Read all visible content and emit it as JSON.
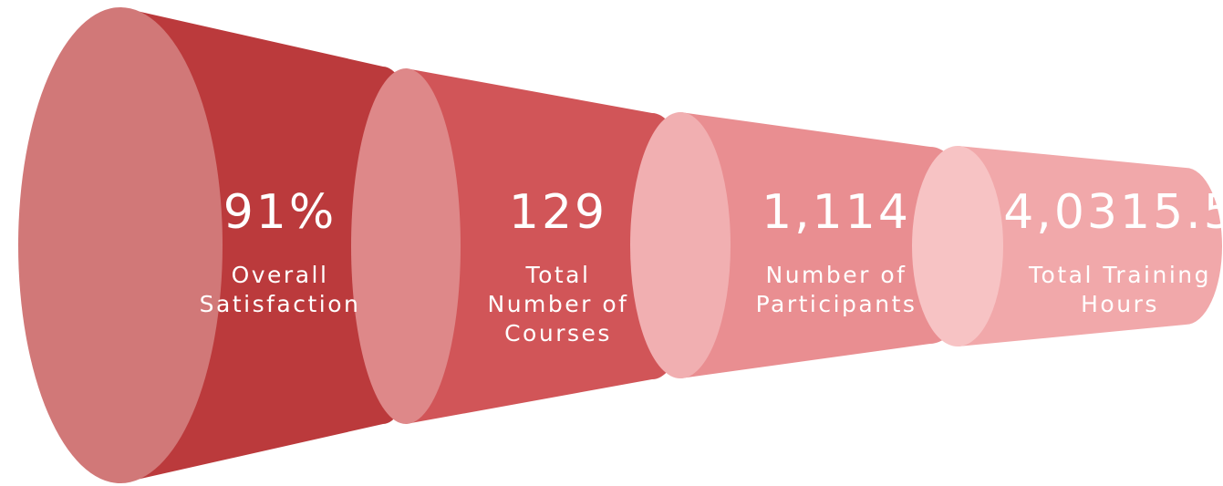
{
  "items": [
    {
      "value": "91%",
      "label": [
        "Overall",
        "Satisfaction"
      ]
    },
    {
      "value": "129",
      "label": [
        "Total",
        "Number of",
        "Courses"
      ]
    },
    {
      "value": "1,114",
      "label": [
        "Number of",
        "Participants"
      ]
    },
    {
      "value": "4,0315.5",
      "label": [
        "Total Training",
        "Hours"
      ]
    }
  ]
}
